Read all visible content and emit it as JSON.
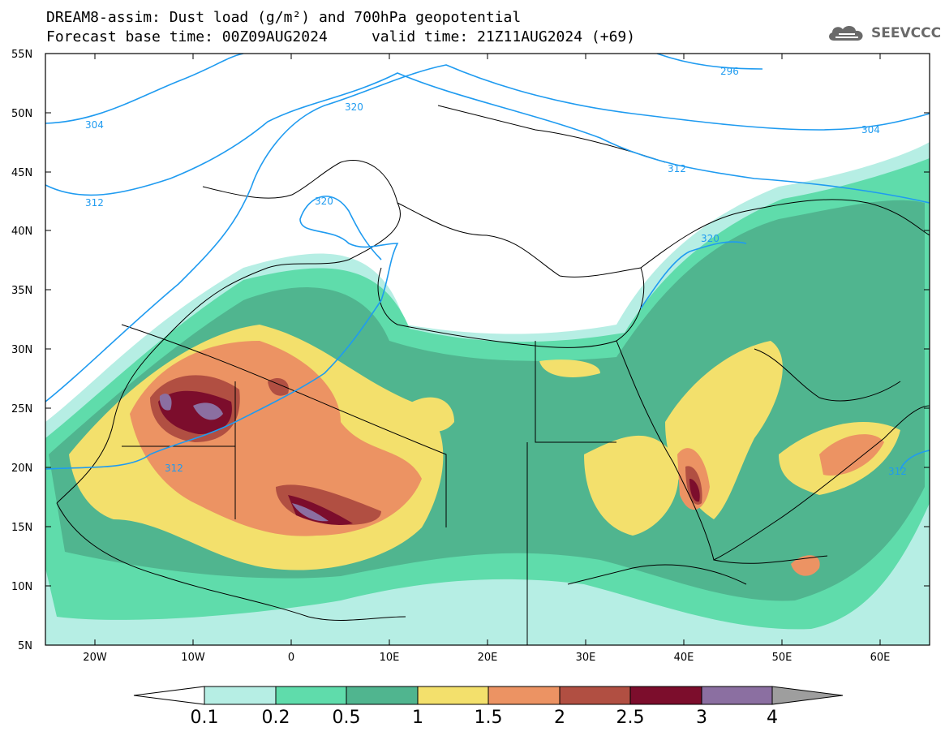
{
  "header": {
    "title_line1": "DREAM8-assim: Dust load (g/m²) and 700hPa geopotential",
    "title_line2": "Forecast base time: 00Z09AUG2024     valid time: 21Z11AUG2024 (+69)",
    "logo_text": "SEEVCCC",
    "logo_icon": "cloud-icon"
  },
  "axes": {
    "lat_labels": [
      "55N",
      "50N",
      "45N",
      "40N",
      "35N",
      "30N",
      "25N",
      "20N",
      "15N",
      "10N",
      "5N"
    ],
    "lon_labels": [
      "20W",
      "10W",
      "0",
      "10E",
      "20E",
      "30E",
      "40E",
      "50E",
      "60E"
    ]
  },
  "contours": {
    "labels": [
      "296",
      "304",
      "320",
      "304",
      "312",
      "320",
      "312",
      "320",
      "312"
    ]
  },
  "colorbar": {
    "labels": [
      "0.1",
      "0.2",
      "0.5",
      "1",
      "1.5",
      "2",
      "2.5",
      "3",
      "4"
    ],
    "colors": [
      "#ffffff",
      "#b6eee4",
      "#5fdcab",
      "#50b58f",
      "#f3e06c",
      "#ec9363",
      "#b14f42",
      "#7c0d2c",
      "#8b6fa1",
      "#9e9e9e"
    ]
  },
  "colors": {
    "contour": "#1f9bf0",
    "coast": "#000000"
  }
}
